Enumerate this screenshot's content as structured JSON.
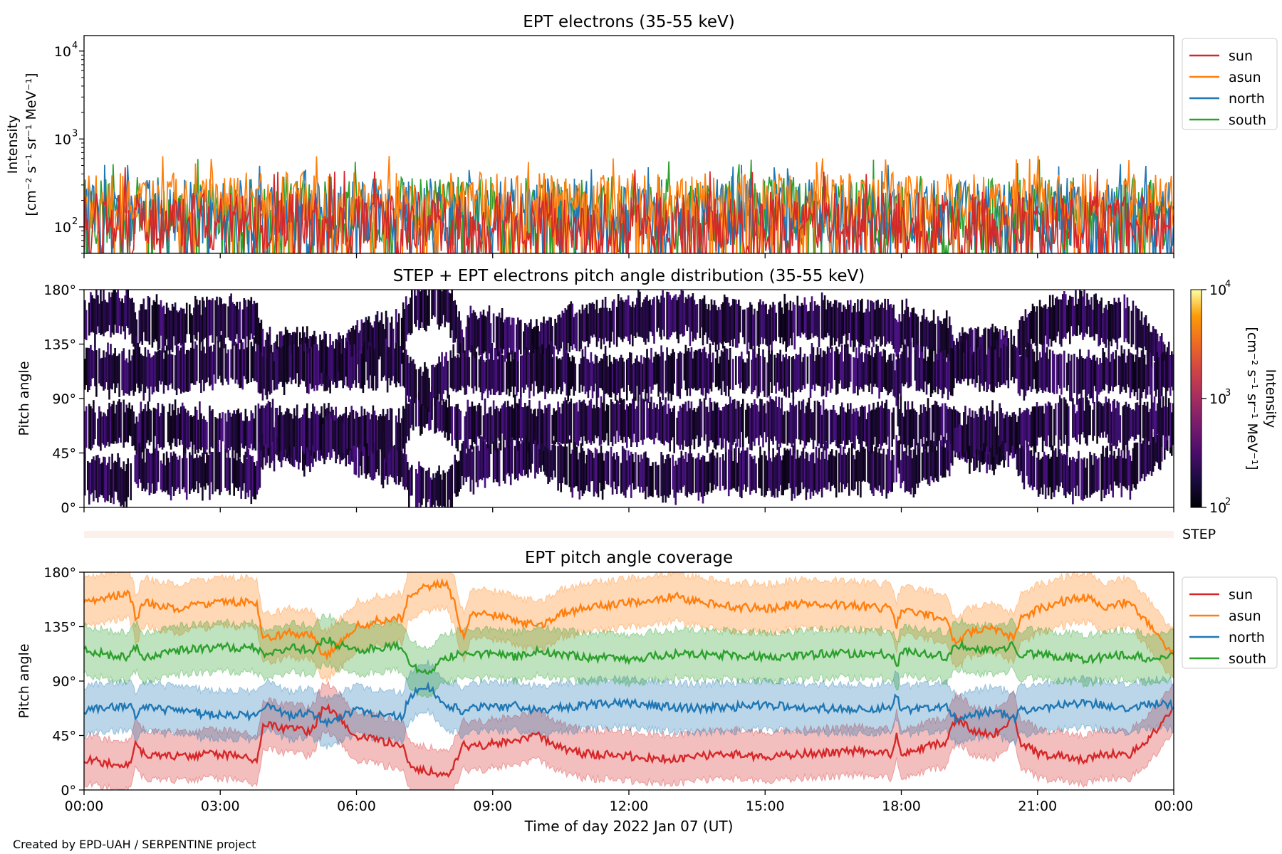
{
  "footer": "Created by EPD-UAH / SERPENTINE project",
  "colors": {
    "sun": "#d62728",
    "asun": "#ff7f0e",
    "north": "#1f77b4",
    "south": "#2ca02c",
    "step_bar": "#fdf0ea"
  },
  "chart_data": [
    {
      "type": "line",
      "title": "EPT electrons (35-55 keV)",
      "ylabel": "Intensity",
      "ylabel_units": "[cm⁻² s⁻¹ sr⁻¹ MeV⁻¹]",
      "yscale": "log",
      "ylim": [
        50,
        15000
      ],
      "ytick_values": [
        100,
        1000,
        10000
      ],
      "ytick_labels": [
        "10",
        "10",
        "10"
      ],
      "ytick_exponents": [
        "2",
        "3",
        "4"
      ],
      "xlim": [
        0,
        24
      ],
      "x_unit": "hours",
      "legend_position": "upper right (outside)",
      "series": [
        {
          "name": "sun",
          "typical_range": [
            50,
            250
          ],
          "peak": 490
        },
        {
          "name": "asun",
          "typical_range": [
            90,
            420
          ],
          "peak": 650
        },
        {
          "name": "north",
          "typical_range": [
            60,
            360
          ],
          "peak": 520
        },
        {
          "name": "south",
          "typical_range": [
            60,
            380
          ],
          "peak": 600
        }
      ]
    },
    {
      "type": "heatmap",
      "title": "STEP + EPT electrons pitch angle distribution (35-55 keV)",
      "ylabel": "Pitch angle",
      "ylim": [
        0,
        180
      ],
      "ytick_values": [
        0,
        45,
        90,
        135,
        180
      ],
      "ytick_labels": [
        "0°",
        "45°",
        "90°",
        "135°",
        "180°"
      ],
      "xlim": [
        0,
        24
      ],
      "colorbar": {
        "label": "Intensity",
        "units": "[cm⁻² s⁻¹ sr⁻¹ MeV⁻¹]",
        "scale": "log",
        "range": [
          100,
          10000
        ],
        "tick_values": [
          100,
          1000,
          10000
        ],
        "tick_labels": [
          "10",
          "10",
          "10"
        ],
        "tick_exponents": [
          "2",
          "3",
          "4"
        ],
        "colormap": "inferno"
      },
      "step_label": "STEP"
    },
    {
      "type": "line",
      "title": "EPT pitch angle coverage",
      "ylabel": "Pitch angle",
      "ylim": [
        0,
        180
      ],
      "ytick_values": [
        0,
        45,
        90,
        135,
        180
      ],
      "ytick_labels": [
        "0°",
        "45°",
        "90°",
        "135°",
        "180°"
      ],
      "xlim": [
        0,
        24
      ],
      "xlabel": "Time of day 2022 Jan 07 (UT)",
      "xtick_values": [
        0,
        3,
        6,
        9,
        12,
        15,
        18,
        21,
        24
      ],
      "xtick_labels": [
        "00:00",
        "03:00",
        "06:00",
        "09:00",
        "12:00",
        "15:00",
        "18:00",
        "21:00",
        "00:00"
      ],
      "band_half_width_deg": 20,
      "legend_position": "upper right (outside)",
      "x": [
        0,
        0.5,
        1,
        1.15,
        1.3,
        2,
        3,
        3.8,
        3.95,
        4.5,
        5,
        5.3,
        5.6,
        6,
        6.5,
        7,
        7.15,
        7.3,
        7.6,
        8,
        8.2,
        8.35,
        8.5,
        9,
        9.5,
        10,
        10.5,
        11,
        12,
        13,
        14,
        15,
        16,
        17,
        17.8,
        17.9,
        18,
        18.5,
        19,
        19.2,
        19.5,
        20,
        20.5,
        20.6,
        20.8,
        21,
        21.5,
        22,
        22.5,
        23,
        23.5,
        24
      ],
      "series": [
        {
          "name": "sun",
          "values": [
            25,
            22,
            20,
            40,
            30,
            28,
            30,
            25,
            55,
            50,
            48,
            70,
            60,
            45,
            40,
            38,
            20,
            18,
            15,
            12,
            25,
            40,
            35,
            38,
            40,
            45,
            35,
            30,
            28,
            25,
            30,
            28,
            30,
            32,
            30,
            45,
            30,
            35,
            40,
            60,
            50,
            45,
            60,
            40,
            35,
            30,
            28,
            25,
            30,
            28,
            45,
            65
          ]
        },
        {
          "name": "asun",
          "values": [
            155,
            160,
            162,
            140,
            155,
            150,
            155,
            155,
            125,
            130,
            128,
            110,
            120,
            135,
            140,
            142,
            160,
            165,
            168,
            170,
            150,
            125,
            145,
            145,
            140,
            135,
            145,
            150,
            155,
            160,
            152,
            150,
            155,
            152,
            150,
            135,
            150,
            145,
            140,
            120,
            130,
            135,
            125,
            140,
            145,
            150,
            155,
            160,
            152,
            155,
            135,
            110
          ]
        },
        {
          "name": "north",
          "values": [
            65,
            68,
            70,
            60,
            68,
            65,
            62,
            62,
            70,
            62,
            65,
            55,
            60,
            65,
            62,
            60,
            75,
            80,
            85,
            70,
            68,
            65,
            68,
            68,
            70,
            65,
            68,
            70,
            72,
            68,
            68,
            70,
            68,
            66,
            68,
            80,
            65,
            68,
            70,
            58,
            62,
            65,
            60,
            68,
            66,
            68,
            70,
            72,
            70,
            68,
            72,
            70
          ]
        },
        {
          "name": "south",
          "values": [
            115,
            112,
            110,
            120,
            110,
            115,
            118,
            118,
            110,
            118,
            115,
            125,
            120,
            115,
            118,
            120,
            105,
            100,
            98,
            110,
            112,
            115,
            112,
            112,
            110,
            115,
            112,
            110,
            108,
            112,
            112,
            110,
            112,
            113,
            112,
            100,
            115,
            112,
            110,
            120,
            118,
            115,
            120,
            112,
            113,
            112,
            110,
            108,
            110,
            112,
            108,
            110
          ]
        }
      ]
    }
  ]
}
